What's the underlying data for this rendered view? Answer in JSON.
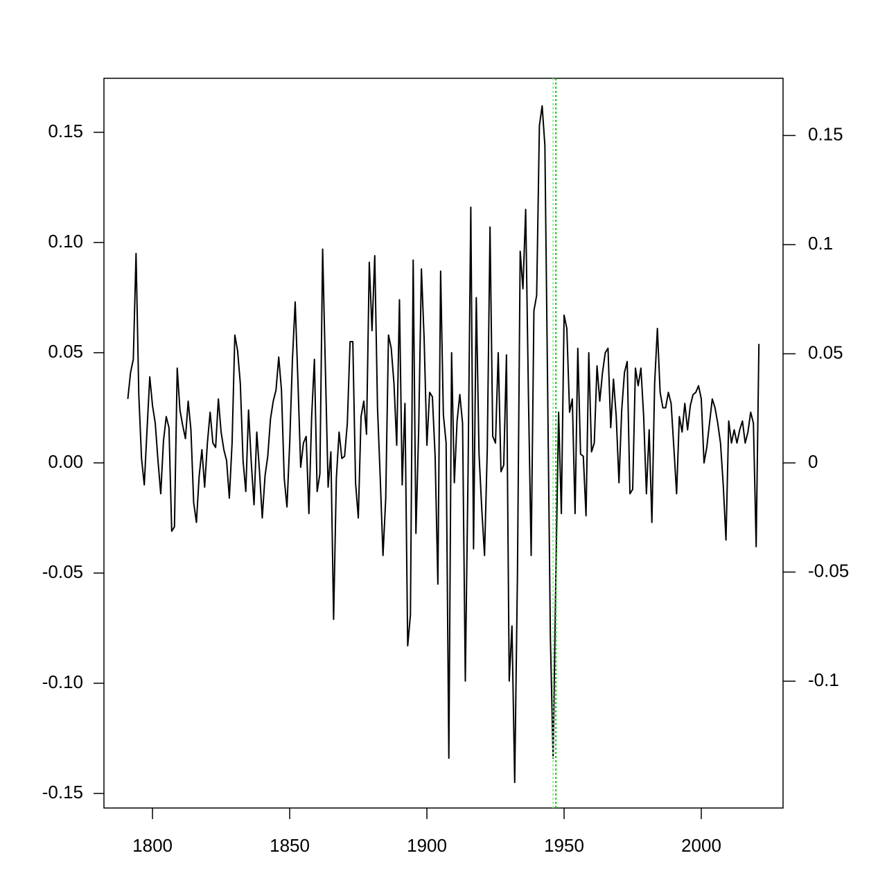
{
  "chart_data": {
    "type": "line",
    "x": [
      1791,
      1792,
      1793,
      1794,
      1795,
      1796,
      1797,
      1798,
      1799,
      1800,
      1801,
      1802,
      1803,
      1804,
      1805,
      1806,
      1807,
      1808,
      1809,
      1810,
      1811,
      1812,
      1813,
      1814,
      1815,
      1816,
      1817,
      1818,
      1819,
      1820,
      1821,
      1822,
      1823,
      1824,
      1825,
      1826,
      1827,
      1828,
      1829,
      1830,
      1831,
      1832,
      1833,
      1834,
      1835,
      1836,
      1837,
      1838,
      1839,
      1840,
      1841,
      1842,
      1843,
      1844,
      1845,
      1846,
      1847,
      1848,
      1849,
      1850,
      1851,
      1852,
      1853,
      1854,
      1855,
      1856,
      1857,
      1858,
      1859,
      1860,
      1861,
      1862,
      1863,
      1864,
      1865,
      1866,
      1867,
      1868,
      1869,
      1870,
      1871,
      1872,
      1873,
      1874,
      1875,
      1876,
      1877,
      1878,
      1879,
      1880,
      1881,
      1882,
      1883,
      1884,
      1885,
      1886,
      1887,
      1888,
      1889,
      1890,
      1891,
      1892,
      1893,
      1894,
      1895,
      1896,
      1897,
      1898,
      1899,
      1900,
      1901,
      1902,
      1903,
      1904,
      1905,
      1906,
      1907,
      1908,
      1909,
      1910,
      1911,
      1912,
      1913,
      1914,
      1915,
      1916,
      1917,
      1918,
      1919,
      1920,
      1921,
      1922,
      1923,
      1924,
      1925,
      1926,
      1927,
      1928,
      1929,
      1930,
      1931,
      1932,
      1933,
      1934,
      1935,
      1936,
      1937,
      1938,
      1939,
      1940,
      1941,
      1942,
      1943,
      1944,
      1945,
      1946,
      1947,
      1948,
      1949,
      1950,
      1951,
      1952,
      1953,
      1954,
      1955,
      1956,
      1957,
      1958,
      1959,
      1960,
      1961,
      1962,
      1963,
      1964,
      1965,
      1966,
      1967,
      1968,
      1969,
      1970,
      1971,
      1972,
      1973,
      1974,
      1975,
      1976,
      1977,
      1978,
      1979,
      1980,
      1981,
      1982,
      1983,
      1984,
      1985,
      1986,
      1987,
      1988,
      1989,
      1990,
      1991,
      1992,
      1993,
      1994,
      1995,
      1996,
      1997,
      1998,
      1999,
      2000,
      2001,
      2002,
      2003,
      2004,
      2005,
      2006,
      2007,
      2008,
      2009,
      2010,
      2011,
      2012,
      2013,
      2014,
      2015,
      2016,
      2017,
      2018,
      2019,
      2020,
      2021
    ],
    "series": [
      {
        "color": "#000000",
        "values": [
          0.029,
          0.041,
          0.047,
          0.095,
          0.031,
          0.002,
          -0.01,
          0.015,
          0.039,
          0.026,
          0.018,
          0.001,
          -0.014,
          0.01,
          0.021,
          0.016,
          -0.031,
          -0.029,
          0.043,
          0.024,
          0.017,
          0.011,
          0.028,
          0.015,
          -0.018,
          -0.027,
          -0.006,
          0.006,
          -0.011,
          0.009,
          0.023,
          0.009,
          0.007,
          0.029,
          0.014,
          0.006,
          0.001,
          -0.016,
          0.009,
          0.058,
          0.051,
          0.036,
          0.001,
          -0.013,
          0.024,
          0.0,
          -0.019,
          0.014,
          -0.004,
          -0.025,
          -0.006,
          0.003,
          0.02,
          0.028,
          0.033,
          0.048,
          0.033,
          -0.007,
          -0.02,
          0.009,
          0.047,
          0.073,
          0.037,
          -0.002,
          0.009,
          0.012,
          -0.023,
          0.021,
          0.047,
          -0.013,
          -0.005,
          0.097,
          0.043,
          -0.011,
          0.005,
          -0.071,
          -0.007,
          0.014,
          0.002,
          0.003,
          0.018,
          0.055,
          0.055,
          -0.009,
          -0.025,
          0.021,
          0.028,
          0.013,
          0.091,
          0.06,
          0.094,
          0.025,
          -0.007,
          -0.042,
          -0.016,
          0.058,
          0.052,
          0.036,
          0.008,
          0.074,
          -0.01,
          0.027,
          -0.083,
          -0.069,
          0.092,
          -0.032,
          0.015,
          0.088,
          0.056,
          0.008,
          0.032,
          0.03,
          0.003,
          -0.055,
          0.087,
          0.022,
          0.009,
          -0.134,
          0.05,
          -0.009,
          0.019,
          0.031,
          0.018,
          -0.099,
          -0.004,
          0.116,
          -0.039,
          0.075,
          0.004,
          -0.021,
          -0.042,
          0.006,
          0.107,
          0.012,
          0.009,
          0.05,
          -0.004,
          -0.001,
          0.049,
          -0.099,
          -0.074,
          -0.145,
          -0.051,
          0.096,
          0.079,
          0.115,
          0.031,
          -0.042,
          0.069,
          0.076,
          0.153,
          0.162,
          0.144,
          0.034,
          -0.079,
          -0.134,
          -0.051,
          0.023,
          -0.023,
          0.067,
          0.061,
          0.023,
          0.029,
          -0.023,
          0.052,
          0.004,
          0.003,
          -0.024,
          0.05,
          0.005,
          0.009,
          0.044,
          0.028,
          0.041,
          0.05,
          0.052,
          0.016,
          0.038,
          0.021,
          -0.009,
          0.024,
          0.041,
          0.046,
          -0.014,
          -0.012,
          0.043,
          0.035,
          0.043,
          0.021,
          -0.014,
          0.015,
          -0.027,
          0.036,
          0.061,
          0.032,
          0.025,
          0.025,
          0.032,
          0.027,
          0.007,
          -0.014,
          0.021,
          0.014,
          0.027,
          0.015,
          0.026,
          0.031,
          0.032,
          0.035,
          0.029,
          0.0,
          0.007,
          0.018,
          0.029,
          0.025,
          0.018,
          0.009,
          -0.01,
          -0.035,
          0.019,
          0.009,
          0.015,
          0.009,
          0.015,
          0.019,
          0.009,
          0.014,
          0.023,
          0.018,
          -0.038,
          0.054
        ]
      }
    ],
    "vlines": [
      {
        "x": 1946,
        "color": "#90ee90"
      },
      {
        "x": 1947,
        "color": "#00cd00"
      }
    ],
    "xlim": [
      1782.3,
      2029.8
    ],
    "xticks": [
      1800,
      1850,
      1900,
      1950,
      2000
    ],
    "ylim": [
      -0.1566,
      0.1745
    ],
    "yticks": [
      {
        "value": -0.15,
        "label": "-0.15"
      },
      {
        "value": -0.1,
        "label": "-0.10"
      },
      {
        "value": -0.05,
        "label": "-0.05"
      },
      {
        "value": 0,
        "label": "0.00"
      },
      {
        "value": 0.05,
        "label": "0.05"
      },
      {
        "value": 0.1,
        "label": "0.10"
      },
      {
        "value": 0.15,
        "label": "0.15"
      }
    ],
    "y2lim": [
      -0.1581,
      0.1762
    ],
    "y2ticks": [
      -0.1,
      -0.05,
      0,
      0.05,
      0.1,
      0.15
    ]
  }
}
